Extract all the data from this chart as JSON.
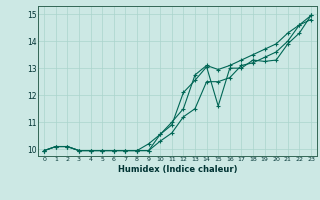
{
  "title": "",
  "xlabel": "Humidex (Indice chaleur)",
  "bg_color": "#cce8e4",
  "grid_color": "#aad4cc",
  "line_color": "#006655",
  "xlim": [
    -0.5,
    23.5
  ],
  "ylim": [
    9.75,
    15.3
  ],
  "yticks": [
    10,
    11,
    12,
    13,
    14,
    15
  ],
  "xticks": [
    0,
    1,
    2,
    3,
    4,
    5,
    6,
    7,
    8,
    9,
    10,
    11,
    12,
    13,
    14,
    15,
    16,
    17,
    18,
    19,
    20,
    21,
    22,
    23
  ],
  "line1_x": [
    0,
    1,
    2,
    3,
    4,
    5,
    6,
    7,
    8,
    9,
    10,
    11,
    12,
    13,
    14,
    15,
    16,
    17,
    18,
    19,
    20,
    21,
    22,
    23
  ],
  "line1_y": [
    9.95,
    10.1,
    10.1,
    9.95,
    9.95,
    9.95,
    9.95,
    9.95,
    9.95,
    9.95,
    10.55,
    10.9,
    12.1,
    12.55,
    13.05,
    11.6,
    13.0,
    13.0,
    13.3,
    13.25,
    13.3,
    13.9,
    14.3,
    14.95
  ],
  "line2_x": [
    0,
    1,
    2,
    3,
    4,
    5,
    6,
    7,
    8,
    9,
    10,
    11,
    12,
    13,
    14,
    15,
    16,
    17,
    18,
    19,
    20,
    21,
    22,
    23
  ],
  "line2_y": [
    9.95,
    10.1,
    10.1,
    9.95,
    9.95,
    9.95,
    9.95,
    9.95,
    9.95,
    10.2,
    10.55,
    11.0,
    11.5,
    12.75,
    13.1,
    12.95,
    13.1,
    13.3,
    13.5,
    13.7,
    13.9,
    14.3,
    14.6,
    14.95
  ],
  "line3_x": [
    0,
    1,
    2,
    3,
    4,
    5,
    6,
    7,
    8,
    9,
    10,
    11,
    12,
    13,
    14,
    15,
    16,
    17,
    18,
    19,
    20,
    21,
    22,
    23
  ],
  "line3_y": [
    9.95,
    10.1,
    10.1,
    9.95,
    9.95,
    9.95,
    9.95,
    9.95,
    9.95,
    9.95,
    10.3,
    10.6,
    11.2,
    11.5,
    12.5,
    12.5,
    12.65,
    13.1,
    13.2,
    13.4,
    13.6,
    14.0,
    14.6,
    14.8
  ]
}
